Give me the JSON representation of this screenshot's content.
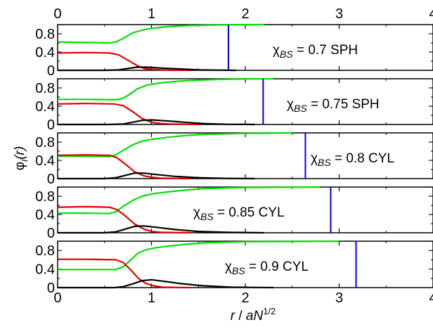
{
  "chart_data": {
    "type": "line",
    "layout": "stacked-panels",
    "xlabel": {
      "var": "r",
      "sep": " / ",
      "base": "aN",
      "sup": "1/2"
    },
    "ylabel": {
      "main": "φ",
      "sub": "i",
      "arg": "(r)"
    },
    "xlim": [
      0,
      4
    ],
    "ylim": [
      0,
      1.0
    ],
    "xticks": [
      0,
      1,
      2,
      3,
      4
    ],
    "xtick_labels": [
      "0",
      "1",
      "2",
      "3",
      "4"
    ],
    "yticks": [
      0,
      0.4,
      0.8
    ],
    "ytick_labels": [
      "0",
      "0.4",
      "0.8"
    ],
    "grid": false,
    "colors": {
      "green": "#00e000",
      "red": "#e00000",
      "black": "#000000",
      "blue": "#0000e0"
    },
    "panels": [
      {
        "annotation": {
          "chi": "χ",
          "sub": "BS",
          "value": " = 0.7",
          "phase": "SPH"
        },
        "boundary_x": 1.82,
        "series": [
          {
            "color": "green",
            "x": [
              0,
              0.3,
              0.55,
              0.62,
              0.7,
              0.8,
              0.9,
              1.0,
              1.2,
              1.4,
              1.6,
              1.8,
              2.2
            ],
            "y": [
              0.62,
              0.61,
              0.6,
              0.62,
              0.7,
              0.82,
              0.88,
              0.92,
              0.96,
              0.98,
              0.99,
              0.995,
              1.0
            ]
          },
          {
            "color": "red",
            "x": [
              0,
              0.3,
              0.55,
              0.65,
              0.75,
              0.85,
              0.92,
              1.0,
              1.1,
              1.2,
              1.4
            ],
            "y": [
              0.38,
              0.39,
              0.38,
              0.34,
              0.22,
              0.1,
              0.04,
              0.02,
              0.01,
              0.005,
              0.0
            ]
          },
          {
            "color": "black",
            "x": [
              0,
              0.5,
              0.65,
              0.75,
              0.85,
              0.95,
              1.1,
              1.3,
              1.5,
              1.7,
              1.9
            ],
            "y": [
              0.0,
              0.0,
              0.01,
              0.04,
              0.07,
              0.07,
              0.05,
              0.03,
              0.01,
              0.005,
              0.0
            ]
          }
        ]
      },
      {
        "annotation": {
          "chi": "χ",
          "sub": "BS",
          "value": " = 0.75",
          "phase": "SPH"
        },
        "boundary_x": 2.19,
        "series": [
          {
            "color": "green",
            "x": [
              0,
              0.3,
              0.6,
              0.68,
              0.76,
              0.85,
              0.95,
              1.1,
              1.3,
              1.5,
              1.7,
              2.0,
              2.3
            ],
            "y": [
              0.55,
              0.55,
              0.54,
              0.56,
              0.65,
              0.78,
              0.86,
              0.91,
              0.95,
              0.97,
              0.985,
              0.995,
              1.0
            ]
          },
          {
            "color": "red",
            "x": [
              0,
              0.3,
              0.6,
              0.7,
              0.8,
              0.9,
              1.0,
              1.1,
              1.2,
              1.35,
              1.5
            ],
            "y": [
              0.45,
              0.46,
              0.45,
              0.41,
              0.28,
              0.13,
              0.05,
              0.02,
              0.01,
              0.005,
              0.0
            ]
          },
          {
            "color": "black",
            "x": [
              0,
              0.55,
              0.7,
              0.8,
              0.9,
              1.0,
              1.15,
              1.35,
              1.55,
              1.8,
              2.1
            ],
            "y": [
              0.0,
              0.0,
              0.01,
              0.05,
              0.09,
              0.1,
              0.08,
              0.05,
              0.02,
              0.005,
              0.0
            ]
          }
        ]
      },
      {
        "annotation": {
          "chi": "χ",
          "sub": "BS",
          "value": " = 0.8",
          "phase": "CYL"
        },
        "boundary_x": 2.64,
        "series": [
          {
            "color": "green",
            "x": [
              0,
              0.3,
              0.55,
              0.62,
              0.7,
              0.8,
              0.9,
              1.0,
              1.2,
              1.4,
              1.6,
              2.0,
              2.5
            ],
            "y": [
              0.49,
              0.49,
              0.48,
              0.52,
              0.62,
              0.74,
              0.82,
              0.86,
              0.91,
              0.95,
              0.97,
              0.99,
              1.0
            ]
          },
          {
            "color": "red",
            "x": [
              0,
              0.3,
              0.55,
              0.63,
              0.72,
              0.82,
              0.92,
              1.0,
              1.1,
              1.25,
              1.4
            ],
            "y": [
              0.51,
              0.52,
              0.51,
              0.46,
              0.32,
              0.15,
              0.06,
              0.03,
              0.01,
              0.005,
              0.0
            ]
          },
          {
            "color": "black",
            "x": [
              0,
              0.5,
              0.62,
              0.72,
              0.82,
              0.92,
              1.05,
              1.25,
              1.5,
              1.8,
              2.1
            ],
            "y": [
              0.0,
              0.0,
              0.02,
              0.07,
              0.12,
              0.12,
              0.09,
              0.05,
              0.02,
              0.005,
              0.0
            ]
          }
        ]
      },
      {
        "annotation": {
          "chi": "χ",
          "sub": "BS",
          "value": " = 0.85",
          "phase": "CYL"
        },
        "boundary_x": 2.91,
        "series": [
          {
            "color": "green",
            "x": [
              0,
              0.3,
              0.55,
              0.62,
              0.7,
              0.8,
              0.9,
              1.0,
              1.2,
              1.4,
              1.6,
              2.0,
              2.8
            ],
            "y": [
              0.43,
              0.43,
              0.42,
              0.46,
              0.58,
              0.71,
              0.8,
              0.85,
              0.9,
              0.94,
              0.97,
              0.99,
              1.0
            ]
          },
          {
            "color": "red",
            "x": [
              0,
              0.3,
              0.55,
              0.63,
              0.72,
              0.82,
              0.92,
              1.0,
              1.1,
              1.25,
              1.4
            ],
            "y": [
              0.56,
              0.57,
              0.56,
              0.51,
              0.37,
              0.19,
              0.08,
              0.03,
              0.01,
              0.005,
              0.0
            ]
          },
          {
            "color": "black",
            "x": [
              0,
              0.5,
              0.62,
              0.72,
              0.82,
              0.92,
              1.05,
              1.25,
              1.5,
              1.8,
              2.2
            ],
            "y": [
              0.0,
              0.0,
              0.02,
              0.08,
              0.14,
              0.15,
              0.12,
              0.07,
              0.03,
              0.01,
              0.0
            ]
          }
        ]
      },
      {
        "annotation": {
          "chi": "χ",
          "sub": "BS",
          "value": " = 0.9",
          "phase": "CYL"
        },
        "boundary_x": 3.18,
        "series": [
          {
            "color": "green",
            "x": [
              0,
              0.3,
              0.62,
              0.7,
              0.78,
              0.86,
              0.95,
              1.05,
              1.2,
              1.4,
              1.6,
              2.0,
              3.0
            ],
            "y": [
              0.39,
              0.39,
              0.39,
              0.45,
              0.6,
              0.75,
              0.82,
              0.86,
              0.9,
              0.94,
              0.97,
              0.99,
              1.0
            ]
          },
          {
            "color": "red",
            "x": [
              0,
              0.3,
              0.62,
              0.7,
              0.78,
              0.86,
              0.94,
              1.02,
              1.12,
              1.25,
              1.4
            ],
            "y": [
              0.61,
              0.61,
              0.6,
              0.54,
              0.38,
              0.2,
              0.09,
              0.04,
              0.01,
              0.005,
              0.0
            ]
          },
          {
            "color": "black",
            "x": [
              0,
              0.6,
              0.7,
              0.8,
              0.9,
              1.0,
              1.12,
              1.3,
              1.55,
              1.85,
              2.3
            ],
            "y": [
              0.0,
              0.0,
              0.02,
              0.08,
              0.15,
              0.17,
              0.14,
              0.09,
              0.04,
              0.01,
              0.0
            ]
          }
        ]
      }
    ]
  }
}
